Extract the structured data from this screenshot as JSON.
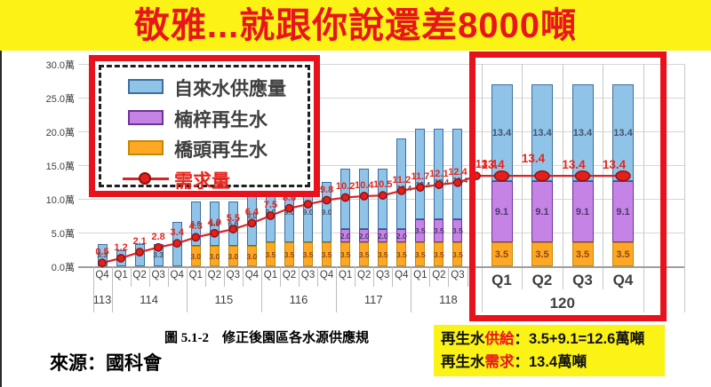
{
  "title": "敬雅...就跟你說還差8000噸",
  "colors": {
    "band_yellow": "#FBF216",
    "title_red": "#E8151D",
    "frame_red": "#E8121C",
    "demand_line": "#D92423",
    "demand_dot": "#E3201B",
    "tap_fill": "#8FC3E8",
    "tap_border": "#3D6E9E",
    "nanzi_fill": "#C583E6",
    "nanzi_border": "#6E3399",
    "qiaotou_fill": "#FFA826",
    "qiaotou_border": "#C28A00",
    "axis_text": "#3F3F3F",
    "red_label": "#E8251C",
    "tap_label": "#44546A",
    "nanzi_label": "#4B3869",
    "qiaotou_label": "#8C4516"
  },
  "legend": {
    "items": [
      {
        "name": "tap-water-supply",
        "label": "自來水供應量",
        "type": "box",
        "swatch": "#8FC3E8",
        "swatch_border": "#3D6E9E",
        "text_color": "#3F3F3F"
      },
      {
        "name": "nanzi-reclaimed-water",
        "label": "楠梓再生水",
        "type": "box",
        "swatch": "#C583E6",
        "swatch_border": "#6E3399",
        "text_color": "#3F3F3F"
      },
      {
        "name": "qiaotou-reclaimed-water",
        "label": "橋頭再生水",
        "type": "box",
        "swatch": "#FFA826",
        "swatch_border": "#C28A00",
        "text_color": "#3F3F3F"
      },
      {
        "name": "demand",
        "label": "需求量",
        "type": "line",
        "swatch": "#D92423",
        "swatch_border": "#8F1010",
        "text_color": "#E8251C"
      }
    ]
  },
  "chart_data": {
    "type": "bar",
    "stacked": true,
    "ylim": [
      0,
      30
    ],
    "unit": "萬噸/10k tons",
    "grid": true,
    "legend_position": "top-left overlay",
    "y_ticks": [
      "0.0萬",
      "5.0萬",
      "10.0萬",
      "15.0萬",
      "20.0萬",
      "25.0萬",
      "30.0萬"
    ],
    "series": [
      {
        "key": "qiaotou",
        "name": "橋頭再生水",
        "role": "stack-bottom"
      },
      {
        "key": "nanzi",
        "name": "楠梓再生水",
        "role": "stack-middle"
      },
      {
        "key": "tap",
        "name": "自來水供應量",
        "role": "stack-top"
      },
      {
        "key": "demand",
        "name": "需求量",
        "role": "line"
      }
    ],
    "years": [
      {
        "label": "113",
        "quarters": 1
      },
      {
        "label": "114",
        "quarters": 4
      },
      {
        "label": "115",
        "quarters": 4
      },
      {
        "label": "116",
        "quarters": 4
      },
      {
        "label": "117",
        "quarters": 4
      },
      {
        "label": "118",
        "quarters": 4
      }
    ],
    "bars": [
      {
        "year": "113",
        "q": "Q4",
        "qiaotou": 0,
        "nanzi": 0,
        "tap": 3.3,
        "demand": 0.5,
        "labels": {
          "demand": "0.5",
          "tap": "3.3"
        }
      },
      {
        "year": "114",
        "q": "Q1",
        "qiaotou": 0,
        "nanzi": 0,
        "tap": 2.4,
        "demand": 1.2,
        "labels": {
          "demand": "1.2"
        }
      },
      {
        "year": "114",
        "q": "Q2",
        "qiaotou": 0,
        "nanzi": 0,
        "tap": 3.3,
        "demand": 2.1,
        "labels": {
          "demand": "2.1"
        }
      },
      {
        "year": "114",
        "q": "Q3",
        "qiaotou": 0,
        "nanzi": 0,
        "tap": 3.3,
        "demand": 2.8,
        "labels": {
          "demand": "2.8",
          "tap": "3.3"
        }
      },
      {
        "year": "114",
        "q": "Q4",
        "qiaotou": 0,
        "nanzi": 0,
        "tap": 6.6,
        "demand": 3.4,
        "labels": {
          "demand": "3.4"
        }
      },
      {
        "year": "115",
        "q": "Q1",
        "qiaotou": 3.0,
        "nanzi": 0,
        "tap": 6.6,
        "demand": 4.3,
        "labels": {
          "demand": "4.3",
          "qiaotou": "3.0",
          "tap": "6.6"
        }
      },
      {
        "year": "115",
        "q": "Q2",
        "qiaotou": 3.0,
        "nanzi": 0,
        "tap": 6.6,
        "demand": 4.9,
        "labels": {
          "demand": "4.9",
          "qiaotou": "3.0",
          "tap": "6.6"
        }
      },
      {
        "year": "115",
        "q": "Q3",
        "qiaotou": 3.0,
        "nanzi": 0,
        "tap": 6.6,
        "demand": 5.5,
        "labels": {
          "demand": "5.5",
          "qiaotou": "3.0",
          "tap": "6.6"
        }
      },
      {
        "year": "115",
        "q": "Q4",
        "qiaotou": 3.0,
        "nanzi": 0,
        "tap": 9.0,
        "demand": 6.4,
        "labels": {
          "demand": "6.4",
          "qiaotou": "3.0",
          "tap": "9.0"
        }
      },
      {
        "year": "116",
        "q": "Q1",
        "qiaotou": 3.5,
        "nanzi": 0,
        "tap": 9.0,
        "demand": 7.5,
        "labels": {
          "demand": "7.5",
          "qiaotou": "3.5",
          "tap": "9.0"
        }
      },
      {
        "year": "116",
        "q": "Q2",
        "qiaotou": 3.5,
        "nanzi": 0,
        "tap": 9.0,
        "demand": 8.6,
        "labels": {
          "demand": "8.6",
          "qiaotou": "3.5",
          "tap": "9.0"
        }
      },
      {
        "year": "116",
        "q": "Q3",
        "qiaotou": 3.5,
        "nanzi": 0,
        "tap": 9.0,
        "demand": 9.2,
        "labels": {
          "demand": "9.2",
          "qiaotou": "3.5",
          "tap": "9.0"
        }
      },
      {
        "year": "116",
        "q": "Q4",
        "qiaotou": 3.5,
        "nanzi": 0,
        "tap": 9.0,
        "demand": 9.8,
        "labels": {
          "demand": "9.8",
          "qiaotou": "3.5",
          "tap": "9.0"
        }
      },
      {
        "year": "117",
        "q": "Q1",
        "qiaotou": 3.5,
        "nanzi": 2.0,
        "tap": 9.0,
        "demand": 10.2,
        "labels": {
          "demand": "10.2",
          "qiaotou": "3.5",
          "nanzi": "2.0"
        }
      },
      {
        "year": "117",
        "q": "Q2",
        "qiaotou": 3.5,
        "nanzi": 2.0,
        "tap": 9.0,
        "demand": 10.4,
        "labels": {
          "demand": "10.4",
          "qiaotou": "3.5",
          "nanzi": "2.0"
        }
      },
      {
        "year": "117",
        "q": "Q3",
        "qiaotou": 3.5,
        "nanzi": 2.0,
        "tap": 9.0,
        "demand": 10.5,
        "labels": {
          "demand": "10.5",
          "qiaotou": "3.5",
          "nanzi": "2.0"
        }
      },
      {
        "year": "117",
        "q": "Q4",
        "qiaotou": 3.5,
        "nanzi": 2.0,
        "tap": 13.4,
        "demand": 11.2,
        "labels": {
          "demand": "11.2",
          "qiaotou": "3.5",
          "nanzi": "2.0",
          "tap": "13.4"
        }
      },
      {
        "year": "118",
        "q": "Q1",
        "qiaotou": 3.5,
        "nanzi": 3.5,
        "tap": 13.4,
        "demand": 11.7,
        "labels": {
          "demand": "11.7",
          "qiaotou": "3.5",
          "nanzi": "3.5",
          "tap": "13.4"
        }
      },
      {
        "year": "118",
        "q": "Q2",
        "qiaotou": 3.5,
        "nanzi": 3.5,
        "tap": 13.4,
        "demand": 12.1,
        "labels": {
          "demand": "12.1",
          "qiaotou": "3.5",
          "nanzi": "3.5",
          "tap": "13.4"
        }
      },
      {
        "year": "118",
        "q": "Q3",
        "qiaotou": 3.5,
        "nanzi": 3.5,
        "tap": 13.4,
        "demand": 12.4,
        "labels": {
          "demand": "12.4",
          "qiaotou": "3.5",
          "nanzi": "3.5",
          "tap": "13.4"
        }
      },
      {
        "year": "118",
        "q": "Q4",
        "qiaotou": 3.5,
        "nanzi": 3.5,
        "tap": 13.4,
        "demand": 13.4,
        "labels": {
          "demand": "13.4"
        }
      }
    ],
    "highlight": {
      "year": "120",
      "bars": [
        {
          "q": "Q1",
          "qiaotou": 3.5,
          "nanzi": 9.1,
          "tap": 13.4,
          "demand": 13.4,
          "labels": {
            "demand": "13.4",
            "qiaotou": "3.5",
            "nanzi": "9.1",
            "tap": "13.4"
          }
        },
        {
          "q": "Q2",
          "qiaotou": 3.5,
          "nanzi": 9.1,
          "tap": 13.4,
          "demand": 13.4,
          "labels": {
            "demand": "13.4",
            "qiaotou": "3.5",
            "nanzi": "9.1",
            "tap": "13.4"
          }
        },
        {
          "q": "Q3",
          "qiaotou": 3.5,
          "nanzi": 9.1,
          "tap": 13.4,
          "demand": 13.4,
          "labels": {
            "demand": "13.4",
            "qiaotou": "3.5",
            "nanzi": "9.1",
            "tap": "13.4"
          }
        },
        {
          "q": "Q4",
          "qiaotou": 3.5,
          "nanzi": 9.1,
          "tap": 13.4,
          "demand": 13.4,
          "labels": {
            "demand": "13.4",
            "qiaotou": "3.5",
            "nanzi": "9.1",
            "tap": "13.4"
          }
        }
      ]
    }
  },
  "footer": {
    "caption": "圖 5.1-2　修正後園區各水源供應規",
    "note_line1": {
      "prefix": "再生水",
      "em": "供給",
      "rest": "：3.5+9.1=12.6萬噸"
    },
    "note_line2": {
      "prefix": "再生水",
      "em": "需求",
      "rest": "：13.4萬噸"
    },
    "source": "來源：國科會"
  }
}
